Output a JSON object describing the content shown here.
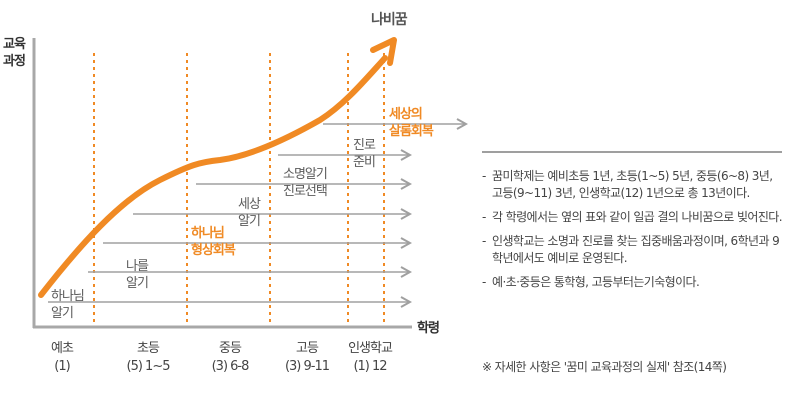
{
  "colors": {
    "accent": "#f08a24",
    "axis": "#a8a8a8",
    "arrow": "#a0a0a0",
    "text": "#5a5a5a"
  },
  "axes": {
    "y_title": [
      "교육",
      "과정"
    ],
    "x_title": "학령",
    "goal": "나비꿈"
  },
  "stages": [
    {
      "name": "예초",
      "range": "(1)"
    },
    {
      "name": "초등",
      "range": "(5) 1~5"
    },
    {
      "name": "중등",
      "range": "(3) 6-8"
    },
    {
      "name": "고등",
      "range": "(3) 9-11"
    },
    {
      "name": "인생학교",
      "range": "(1) 12"
    }
  ],
  "curriculum": [
    {
      "lines": [
        "하나님",
        "알기"
      ],
      "highlight": false
    },
    {
      "lines": [
        "나를",
        "알기"
      ],
      "highlight": false
    },
    {
      "lines": [
        "하나님",
        "형상회복"
      ],
      "highlight": true
    },
    {
      "lines": [
        "세상",
        "알기"
      ],
      "highlight": false
    },
    {
      "lines": [
        "소명알기",
        "진로선택"
      ],
      "highlight": false
    },
    {
      "lines": [
        "진로",
        "준비"
      ],
      "highlight": false
    },
    {
      "lines": [
        "세상의",
        "살롬회복"
      ],
      "highlight": true
    }
  ],
  "notes": [
    "꿈미학제는 예비초등 1년, 초등(1~5) 5년, 중등(6~8) 3년, 고등(9~11) 3년, 인생학교(12) 1년으로 총 13년이다.",
    "각 학령에서는 옆의 표와 같이 일곱 결의 나비꿈으로 빚어진다.",
    "인생학교는 소명과 진로를 찾는 집중배움과정이며, 6학년과 9학년에서도 예비로 운영된다.",
    "예·초·중등은 통학형, 고등부터는기숙형이다."
  ],
  "note_dash": "-",
  "reference": "※ 자세한 사항은 '꿈미 교육과정의 실제' 참조(14쪽)"
}
